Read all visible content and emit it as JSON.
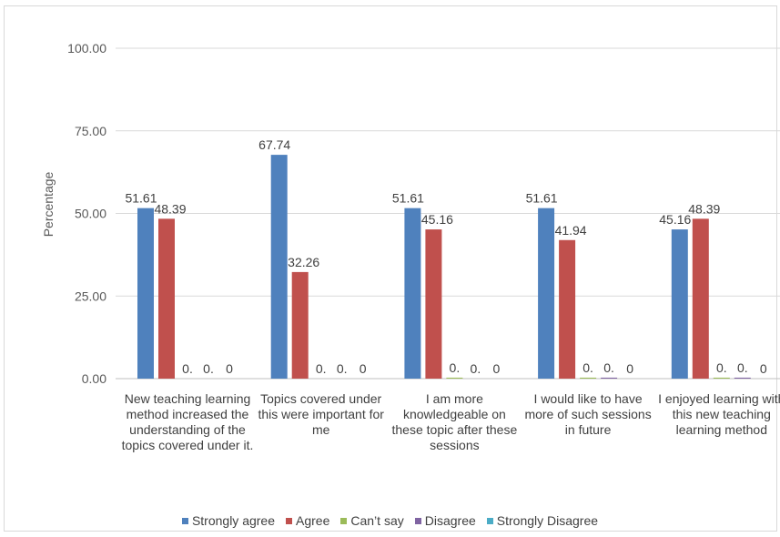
{
  "chart_data": {
    "type": "bar",
    "title": "",
    "xlabel": "",
    "ylabel": "Percentage",
    "ylim": [
      0,
      100
    ],
    "yticks": [
      "0.00",
      "25.00",
      "50.00",
      "75.00",
      "100.00"
    ],
    "grid": true,
    "legend_position": "bottom",
    "categories": [
      "New teaching learning method increased the understanding of the topics covered under it.",
      "Topics covered under this were important for me",
      "I am more knowledgeable  on these topic after these sessions",
      "I would like to have more of such sessions in future",
      "I enjoyed learning with this new teaching learning method"
    ],
    "series": [
      {
        "name": "Strongly agree",
        "color": "#4f81bd",
        "values": [
          51.61,
          67.74,
          51.61,
          51.61,
          45.16
        ],
        "labels": [
          "51.61",
          "67.74",
          "51.61",
          "51.61",
          "45.16"
        ]
      },
      {
        "name": "Agree",
        "color": "#c0504d",
        "values": [
          48.39,
          32.26,
          45.16,
          41.94,
          48.39
        ],
        "labels": [
          "48.39",
          "32.26",
          "45.16",
          "41.94",
          "48.39"
        ]
      },
      {
        "name": "Can’t say",
        "color": "#9bbb59",
        "values": [
          0,
          0,
          0.3,
          0.3,
          0.3
        ],
        "labels": [
          "0.",
          "0.",
          "0.",
          "0.",
          "0."
        ]
      },
      {
        "name": "Disagree",
        "color": "#8064a2",
        "values": [
          0,
          0,
          0,
          0.3,
          0.3
        ],
        "labels": [
          "0.",
          "0.",
          "0.",
          "0.",
          "0."
        ]
      },
      {
        "name": "Strongly Disagree",
        "color": "#4bacc6",
        "values": [
          0,
          0,
          0,
          0,
          0
        ],
        "labels": [
          "0",
          "0",
          "0",
          "0",
          "0"
        ]
      }
    ]
  }
}
